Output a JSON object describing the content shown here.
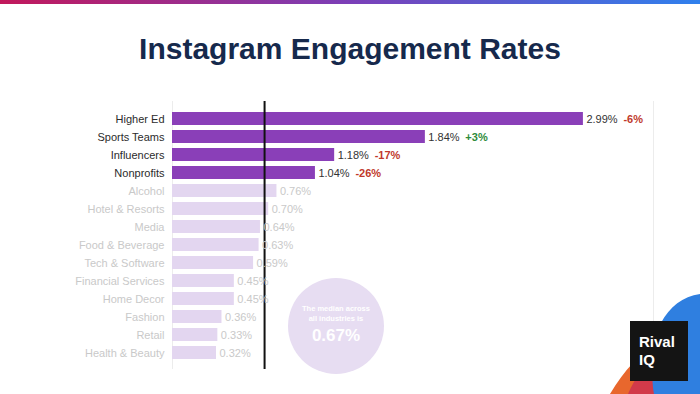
{
  "chart_data": {
    "type": "bar",
    "orientation": "horizontal",
    "title": "Instagram Engagement Rates",
    "categories": [
      "Higher Ed",
      "Sports Teams",
      "Influencers",
      "Nonprofits",
      "Alcohol",
      "Hotel & Resorts",
      "Media",
      "Food & Beverage",
      "Tech & Software",
      "Financial Services",
      "Home Decor",
      "Fashion",
      "Retail",
      "Health & Beauty"
    ],
    "values": [
      2.99,
      1.84,
      1.18,
      1.04,
      0.76,
      0.7,
      0.64,
      0.63,
      0.59,
      0.45,
      0.45,
      0.36,
      0.33,
      0.32
    ],
    "value_labels": [
      "2.99%",
      "1.84%",
      "1.18%",
      "1.04%",
      "0.76%",
      "0.70%",
      "0.64%",
      "0.63%",
      "0.59%",
      "0.45%",
      "0.45%",
      "0.36%",
      "0.33%",
      "0.32%"
    ],
    "colors": [
      "#8a3fb8",
      "#8a3fb8",
      "#8a3fb8",
      "#8a3fb8",
      "#e3d6f0",
      "#e3d6f0",
      "#e3d6f0",
      "#e3d6f0",
      "#e3d6f0",
      "#e3d6f0",
      "#e3d6f0",
      "#e3d6f0",
      "#e3d6f0",
      "#e3d6f0"
    ],
    "changes": [
      -6,
      3,
      -17,
      -26,
      null,
      null,
      null,
      null,
      null,
      null,
      null,
      null,
      null,
      null
    ],
    "change_labels": [
      "-6%",
      "+3%",
      "-17%",
      "-26%",
      null,
      null,
      null,
      null,
      null,
      null,
      null,
      null,
      null,
      null
    ],
    "median": {
      "value": 0.67,
      "label": "The median across all industries is",
      "value_label": "0.67%"
    },
    "xlim": [
      0,
      3.5
    ],
    "data_labels": true,
    "tick_labels": "y",
    "logo": "Rival IQ"
  }
}
